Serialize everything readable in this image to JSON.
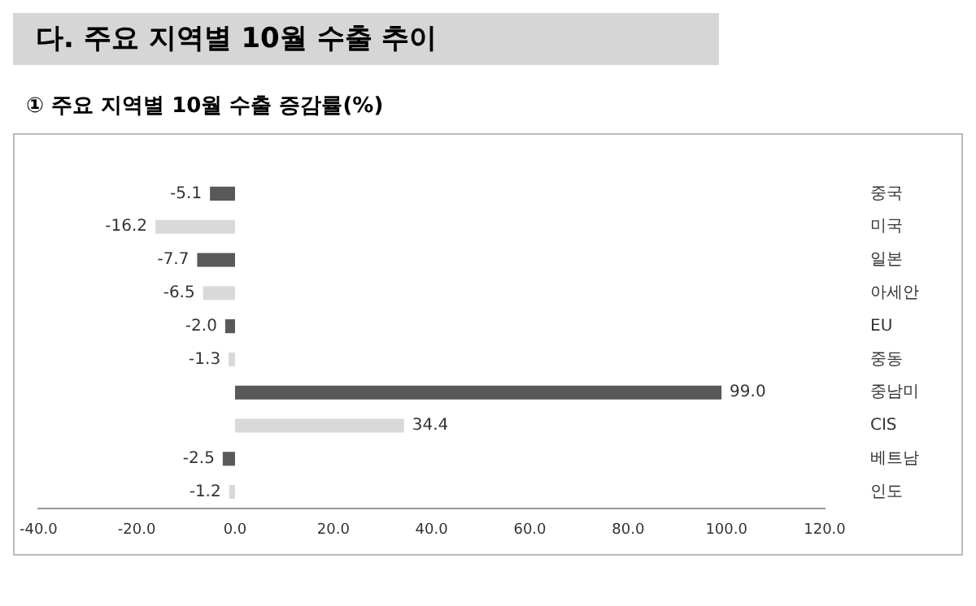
{
  "chart_data": {
    "type": "bar",
    "orientation": "horizontal",
    "title": "다. 주요 지역별 10월 수출 추이",
    "subtitle": "① 주요 지역별 10월 수출 증감률(%)",
    "categories": [
      "중국",
      "미국",
      "일본",
      "아세안",
      "EU",
      "중동",
      "중남미",
      "CIS",
      "베트남",
      "인도"
    ],
    "values": [
      -5.1,
      -16.2,
      -7.7,
      -6.5,
      -2.0,
      -1.3,
      99.0,
      34.4,
      -2.5,
      -1.2
    ],
    "colors": [
      "#595959",
      "#d9d9d9",
      "#595959",
      "#d9d9d9",
      "#595959",
      "#d9d9d9",
      "#595959",
      "#d9d9d9",
      "#595959",
      "#d9d9d9"
    ],
    "value_labels": [
      "-5.1",
      "-16.2",
      "-7.7",
      "-6.5",
      "-2.0",
      "-1.3",
      "99.0",
      "34.4",
      "-2.5",
      "-1.2"
    ],
    "xlim": [
      -40,
      120
    ],
    "xticks": [
      {
        "value": -40,
        "label": "-40.0"
      },
      {
        "value": -20,
        "label": "-20.0"
      },
      {
        "value": 0,
        "label": "0.0"
      },
      {
        "value": 20,
        "label": "20.0"
      },
      {
        "value": 40,
        "label": "40.0"
      },
      {
        "value": 60,
        "label": "60.0"
      },
      {
        "value": 80,
        "label": "80.0"
      },
      {
        "value": 100,
        "label": "100.0"
      },
      {
        "value": 120,
        "label": "120.0"
      }
    ],
    "grid": false,
    "legend": false
  }
}
